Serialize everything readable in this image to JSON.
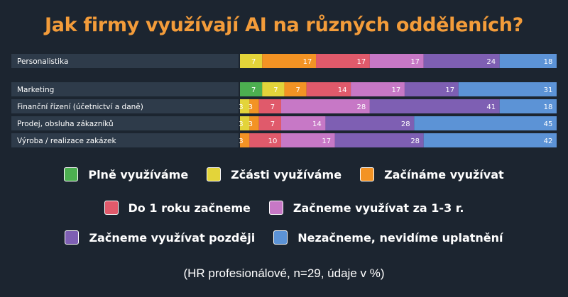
{
  "chart_data": {
    "type": "bar",
    "orientation": "horizontal",
    "stacked": true,
    "title": "Jak firmy využívají AI na různých odděleních?",
    "categories": [
      "Personalistika",
      "Marketing",
      "Finanční řízení (účetnictví a daně)",
      "Prodej, obsluha zákazníků",
      "Výroba / realizace zakázek"
    ],
    "series": [
      {
        "name": "Plně využíváme",
        "color": "#4caf50",
        "values": [
          0,
          7,
          0,
          0,
          0
        ]
      },
      {
        "name": "Zčásti využíváme",
        "color": "#e3d43a",
        "values": [
          7,
          7,
          3,
          3,
          0
        ]
      },
      {
        "name": "Začínáme využívat",
        "color": "#f39324",
        "values": [
          17,
          7,
          3,
          3,
          3
        ]
      },
      {
        "name": "Do 1 roku začneme",
        "color": "#e05a6b",
        "values": [
          17,
          14,
          7,
          7,
          10
        ]
      },
      {
        "name": "Začneme využívat za 1-3 r.",
        "color": "#c778c6",
        "values": [
          17,
          17,
          28,
          14,
          17
        ]
      },
      {
        "name": "Začneme využívat později",
        "color": "#7e5fb3",
        "values": [
          24,
          17,
          41,
          28,
          28
        ]
      },
      {
        "name": "Nezačneme, nevidíme uplatnění",
        "color": "#5c93d6",
        "values": [
          18,
          31,
          18,
          45,
          42
        ]
      }
    ],
    "xlim": [
      0,
      100
    ],
    "grid": false,
    "legend_position": "bottom"
  },
  "footnote": "(HR profesionálové, n=29, údaje v %)"
}
